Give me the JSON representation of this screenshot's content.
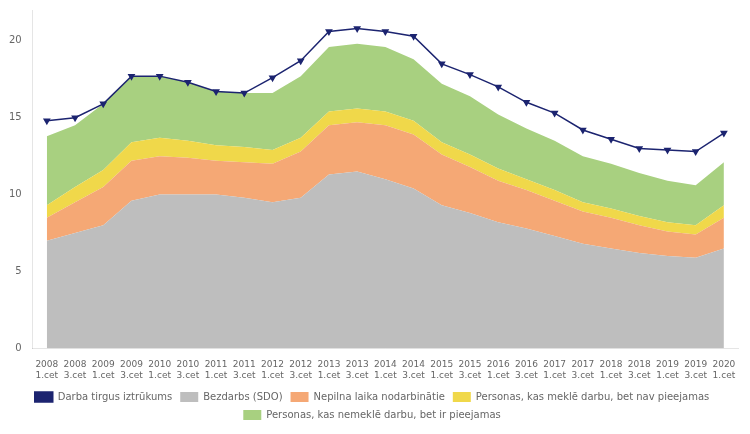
{
  "chart_data": {
    "type": "line",
    "stacked": true,
    "grid": false,
    "legend": "bottom",
    "categories": [
      [
        "2008",
        "1.cet"
      ],
      [
        "2008",
        "3.cet"
      ],
      [
        "2009",
        "1.cet"
      ],
      [
        "2009",
        "3.cet"
      ],
      [
        "2010",
        "1.cet"
      ],
      [
        "2010",
        "3.cet"
      ],
      [
        "2011",
        "1.cet"
      ],
      [
        "2011",
        "3.cet"
      ],
      [
        "2012",
        "1.cet"
      ],
      [
        "2012",
        "3.cet"
      ],
      [
        "2013",
        "1.cet"
      ],
      [
        "2013",
        "3.cet"
      ],
      [
        "2014",
        "1.cet"
      ],
      [
        "2014",
        "3.cet"
      ],
      [
        "2015",
        "1.cet"
      ],
      [
        "2015",
        "3.cet"
      ],
      [
        "2016",
        "1.cet"
      ],
      [
        "2016",
        "3.cet"
      ],
      [
        "2017",
        "1.cet"
      ],
      [
        "2017",
        "3.cet"
      ],
      [
        "2018",
        "1.cet"
      ],
      [
        "2018",
        "3.cet"
      ],
      [
        "2019",
        "1.cet"
      ],
      [
        "2019",
        "3.cet"
      ],
      [
        "2020",
        "1.cet"
      ]
    ],
    "series": [
      {
        "name": "Bezdarbs (SDO)",
        "type": "area",
        "color": "#bebebe",
        "values": [
          7.0,
          7.5,
          8.0,
          9.6,
          10.0,
          10.0,
          10.0,
          9.8,
          9.5,
          9.8,
          11.3,
          11.5,
          11.0,
          10.4,
          9.3,
          8.8,
          8.2,
          7.8,
          7.3,
          6.8,
          6.5,
          6.2,
          6.0,
          5.9,
          6.5
        ]
      },
      {
        "name": "Nepilna laika nodarbinātie",
        "type": "area",
        "color": "#f5a875",
        "values": [
          1.5,
          2.0,
          2.5,
          2.6,
          2.5,
          2.4,
          2.2,
          2.3,
          2.5,
          3.0,
          3.2,
          3.2,
          3.5,
          3.5,
          3.3,
          3.0,
          2.7,
          2.5,
          2.3,
          2.1,
          2.0,
          1.8,
          1.6,
          1.5,
          2.0
        ]
      },
      {
        "name": "Personas, kas meklē darbu, bet nav pieejamas",
        "type": "area",
        "color": "#f0d84a",
        "values": [
          0.8,
          1.0,
          1.1,
          1.2,
          1.2,
          1.1,
          1.0,
          1.0,
          0.9,
          0.9,
          0.9,
          0.9,
          0.9,
          0.9,
          0.8,
          0.8,
          0.8,
          0.7,
          0.7,
          0.6,
          0.6,
          0.6,
          0.6,
          0.6,
          0.8
        ]
      },
      {
        "name": "Personas, kas nemeklē darbu, bet ir pieejamas",
        "type": "area",
        "color": "#a8d080",
        "values": [
          4.5,
          4.0,
          4.3,
          4.3,
          4.0,
          3.8,
          3.5,
          3.5,
          3.7,
          4.0,
          4.2,
          4.2,
          4.2,
          4.0,
          3.8,
          3.8,
          3.5,
          3.3,
          3.2,
          3.0,
          2.9,
          2.8,
          2.7,
          2.6,
          2.8
        ]
      },
      {
        "name": "Darba tirgus iztrūkums",
        "type": "line",
        "color": "#1c2470",
        "marker": "triangle-down",
        "values": [
          14.8,
          15.0,
          15.9,
          17.7,
          17.7,
          17.3,
          16.7,
          16.6,
          17.6,
          18.7,
          20.6,
          20.8,
          20.6,
          20.3,
          18.5,
          17.8,
          17.0,
          16.0,
          15.3,
          14.2,
          13.6,
          13.0,
          12.9,
          12.8,
          14.0
        ]
      }
    ],
    "ylim": [
      0,
      22
    ],
    "yticks": [
      0,
      5,
      10,
      15,
      20
    ]
  }
}
